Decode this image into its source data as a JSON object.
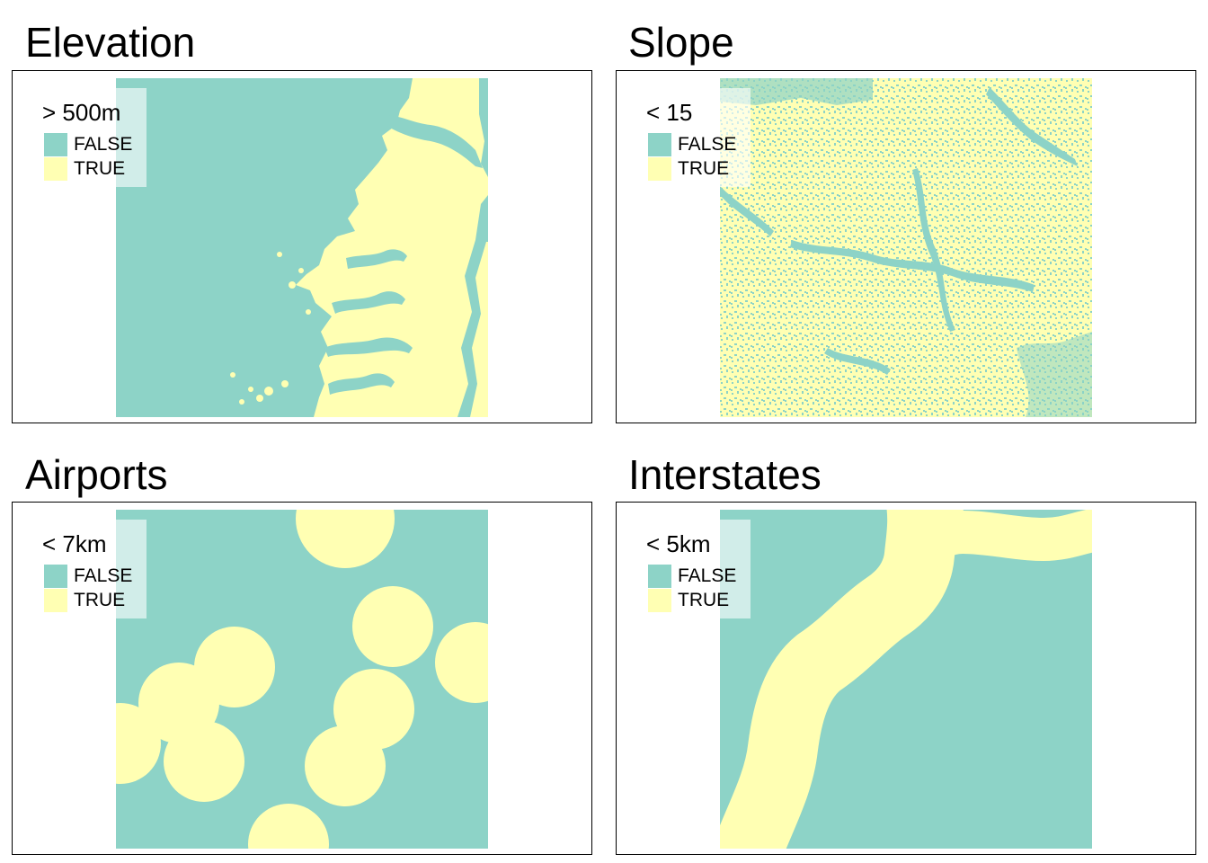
{
  "colors": {
    "false": "#8dd3c7",
    "true": "#ffffb3"
  },
  "panels": [
    {
      "title": "Elevation",
      "legend_title": "> 500m",
      "legend": [
        "FALSE",
        "TRUE"
      ]
    },
    {
      "title": "Slope",
      "legend_title": "< 15",
      "legend": [
        "FALSE",
        "TRUE"
      ]
    },
    {
      "title": "Airports",
      "legend_title": "< 7km",
      "legend": [
        "FALSE",
        "TRUE"
      ]
    },
    {
      "title": "Interstates",
      "legend_title": "< 5km",
      "legend": [
        "FALSE",
        "TRUE"
      ]
    }
  ]
}
